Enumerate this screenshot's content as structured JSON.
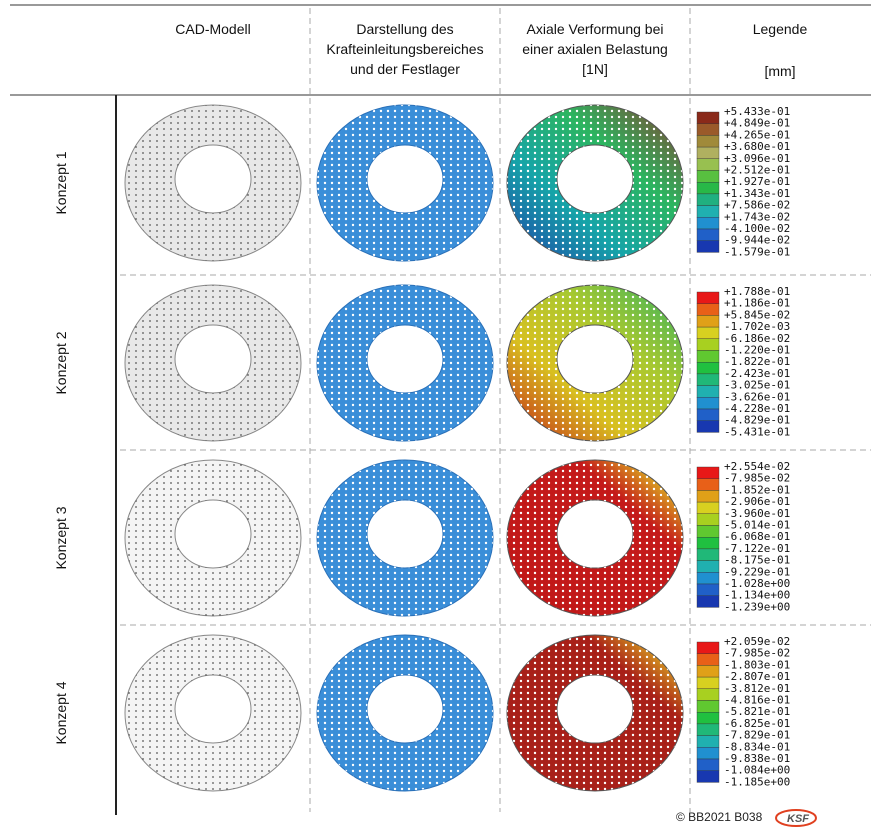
{
  "header": {
    "columns": [
      [
        "CAD-Modell"
      ],
      [
        "Darstellung des",
        "Krafteinleitungsbereiches",
        "und der Festlager"
      ],
      [
        "Axiale Verformung bei",
        "einer axialen Belastung",
        "[1N]"
      ],
      [
        "Legende",
        "[mm]"
      ]
    ]
  },
  "rows": [
    {
      "label": "Konzept 1",
      "legend": [
        "+5.433e-01",
        "+4.849e-01",
        "+4.265e-01",
        "+3.680e-01",
        "+3.096e-01",
        "+2.512e-01",
        "+1.927e-01",
        "+1.343e-01",
        "+7.586e-02",
        "+1.743e-02",
        "-4.100e-02",
        "-9.944e-02",
        "-1.579e-01"
      ]
    },
    {
      "label": "Konzept 2",
      "legend": [
        "+1.788e-01",
        "+1.186e-01",
        "+5.845e-02",
        "-1.702e-03",
        "-6.186e-02",
        "-1.220e-01",
        "-1.822e-01",
        "-2.423e-01",
        "-3.025e-01",
        "-3.626e-01",
        "-4.228e-01",
        "-4.829e-01",
        "-5.431e-01"
      ]
    },
    {
      "label": "Konzept 3",
      "legend": [
        "+2.554e-02",
        "-7.985e-02",
        "-1.852e-01",
        "-2.906e-01",
        "-3.960e-01",
        "-5.014e-01",
        "-6.068e-01",
        "-7.122e-01",
        "-8.175e-01",
        "-9.229e-01",
        "-1.028e+00",
        "-1.134e+00",
        "-1.239e+00"
      ]
    },
    {
      "label": "Konzept 4",
      "legend": [
        "+2.059e-02",
        "-7.985e-02",
        "-1.803e-01",
        "-2.807e-01",
        "-3.812e-01",
        "-4.816e-01",
        "-5.821e-01",
        "-6.825e-01",
        "-7.829e-01",
        "-8.834e-01",
        "-9.838e-01",
        "-1.084e+00",
        "-1.185e+00"
      ]
    }
  ],
  "footer": {
    "copyright": "© BB2021 B038",
    "logo": "KSF"
  }
}
